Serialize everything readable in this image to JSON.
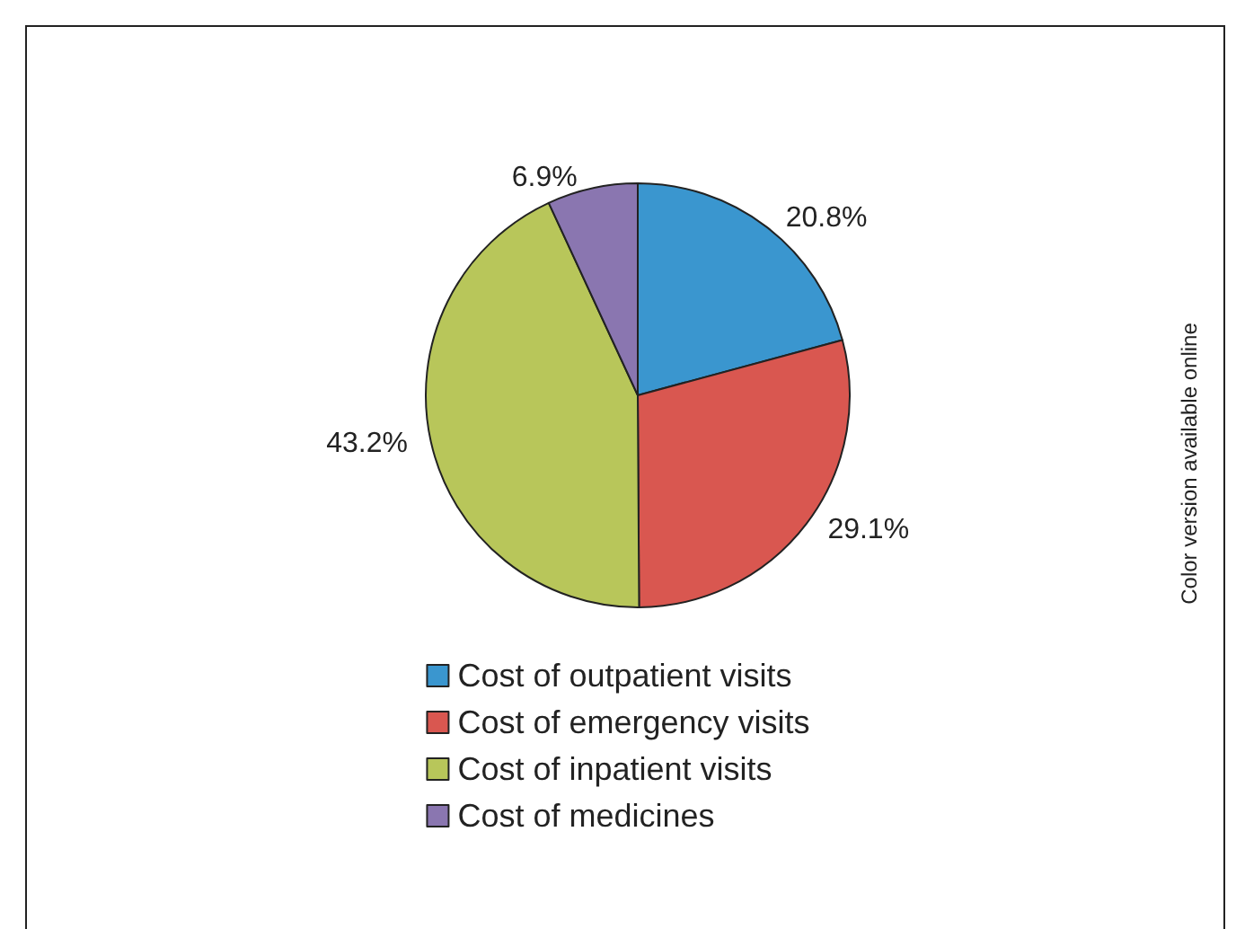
{
  "chart_data": {
    "type": "pie",
    "categories": [
      "Cost of outpatient visits",
      "Cost of emergency visits",
      "Cost of inpatient visits",
      "Cost of medicines"
    ],
    "values": [
      20.8,
      29.1,
      43.2,
      6.9
    ],
    "value_labels": [
      "20.8%",
      "29.1%",
      "43.2%",
      "6.9%"
    ],
    "colors": [
      "#3a96cf",
      "#d95750",
      "#b8c65a",
      "#8a76b0"
    ],
    "legend": "bottom",
    "annotations": [
      "Color version available online"
    ]
  }
}
